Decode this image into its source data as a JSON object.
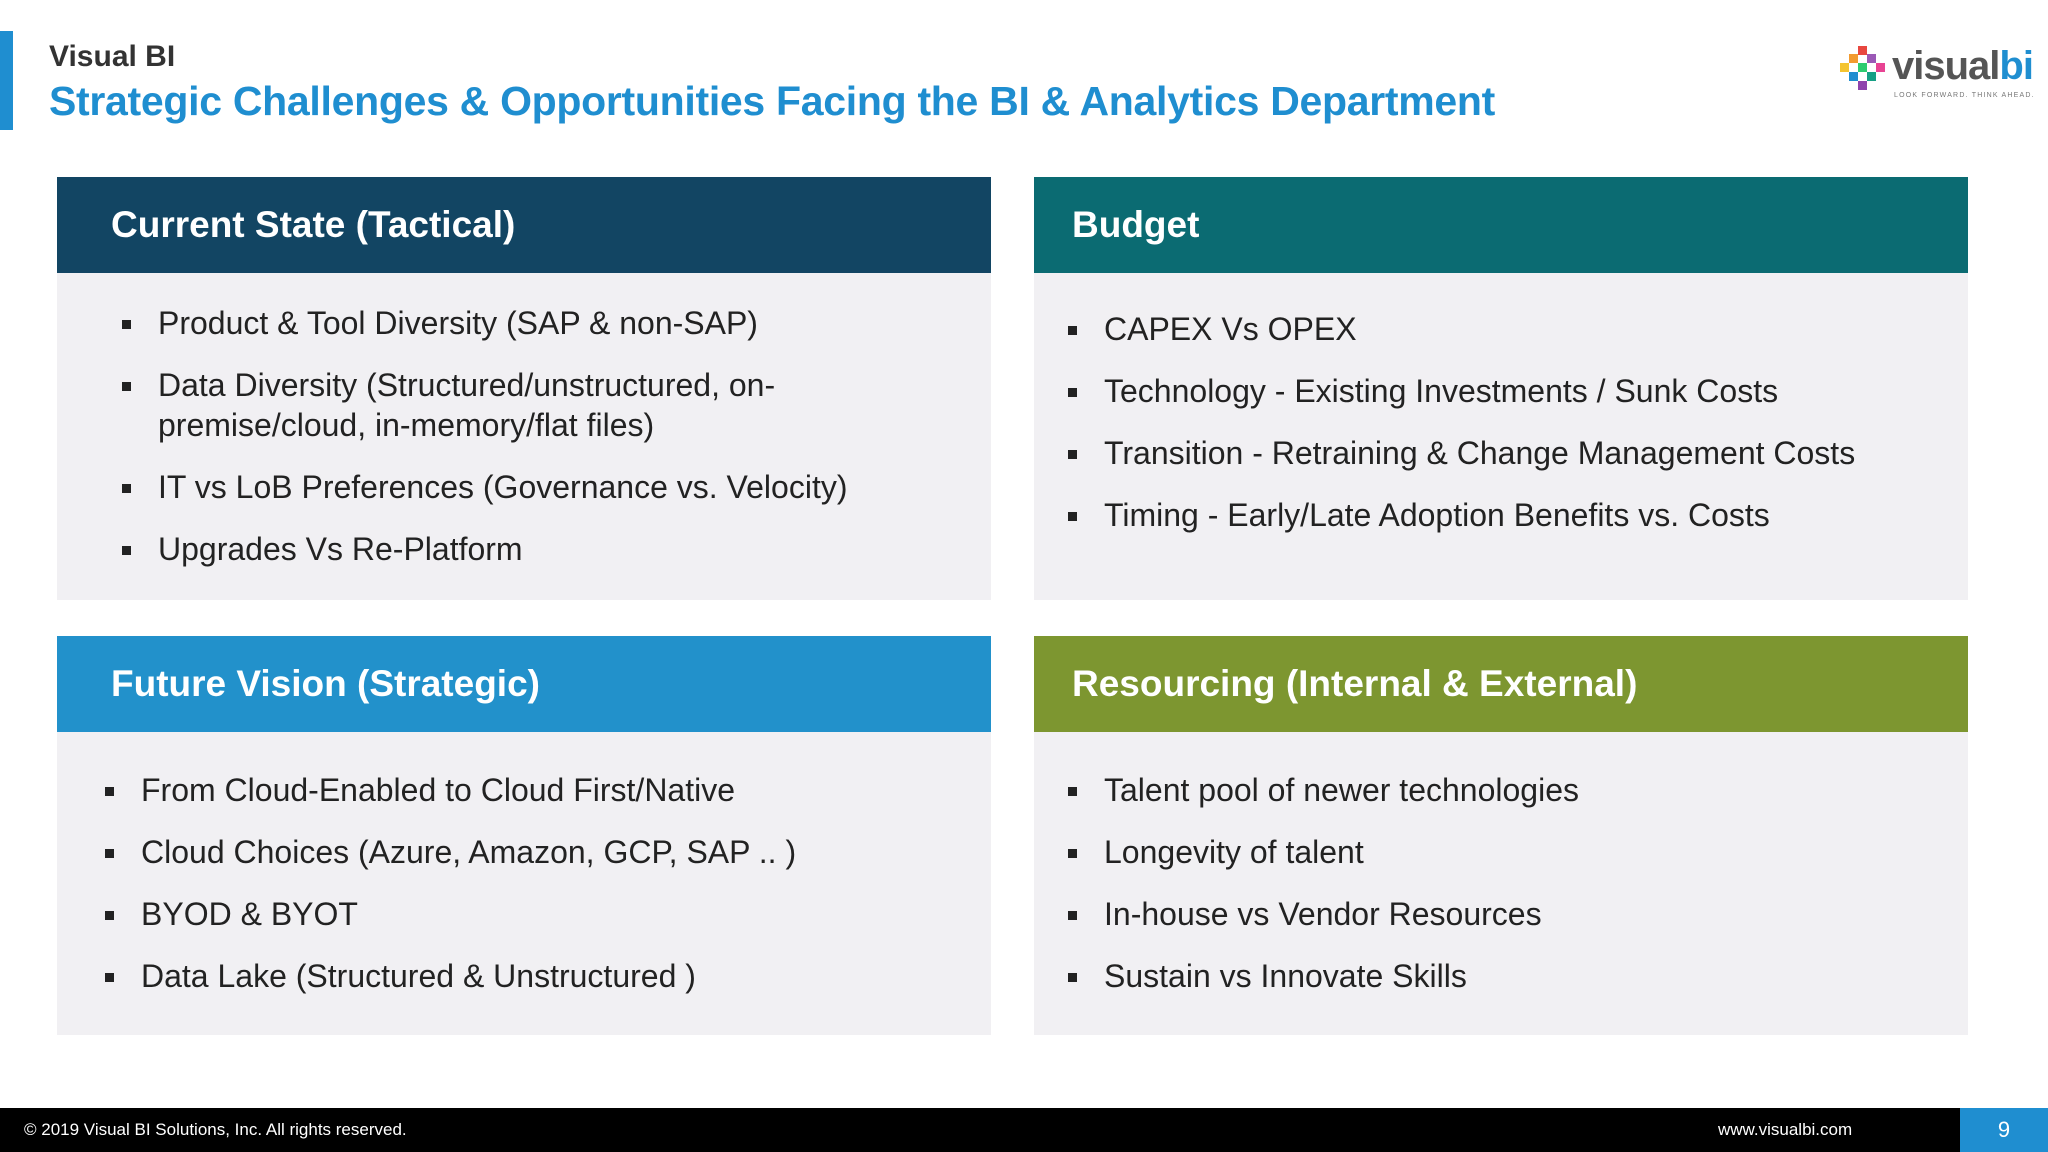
{
  "header": {
    "company": "Visual BI",
    "title": "Strategic Challenges & Opportunities Facing the BI & Analytics Department"
  },
  "logo": {
    "text_main": "visual",
    "text_accent": "bi",
    "tagline": "LOOK FORWARD. THINK AHEAD."
  },
  "boxes": {
    "current_state": {
      "heading": "Current State (Tactical)",
      "items": [
        "Product & Tool Diversity (SAP & non-SAP)",
        "Data Diversity (Structured/unstructured, on-premise/cloud, in-memory/flat files)",
        "IT vs LoB Preferences (Governance vs. Velocity)",
        "Upgrades Vs Re-Platform"
      ]
    },
    "budget": {
      "heading": "Budget",
      "items": [
        "CAPEX Vs OPEX",
        "Technology - Existing Investments / Sunk Costs",
        "Transition - Retraining & Change Management Costs",
        "Timing - Early/Late Adoption Benefits vs. Costs"
      ]
    },
    "future_vision": {
      "heading": "Future Vision (Strategic)",
      "items": [
        "From Cloud-Enabled to Cloud First/Native",
        "Cloud Choices (Azure, Amazon, GCP, SAP .. )",
        "BYOD & BYOT",
        "Data Lake (Structured & Unstructured )"
      ]
    },
    "resourcing": {
      "heading": "Resourcing (Internal & External)",
      "items": [
        "Talent pool of newer technologies",
        "Longevity of talent",
        "In-house vs Vendor Resources",
        "Sustain vs Innovate Skills"
      ]
    }
  },
  "footer": {
    "copyright": "© 2019 Visual BI Solutions, Inc. All rights reserved.",
    "website": "www.visualbi.com",
    "page_number": "9"
  },
  "colors": {
    "accent": "#1f8ed0",
    "current_state_header": "#124563",
    "budget_header": "#0b6b72",
    "future_vision_header": "#2291cb",
    "resourcing_header": "#7d9630",
    "box_body": "#f1f0f3"
  }
}
